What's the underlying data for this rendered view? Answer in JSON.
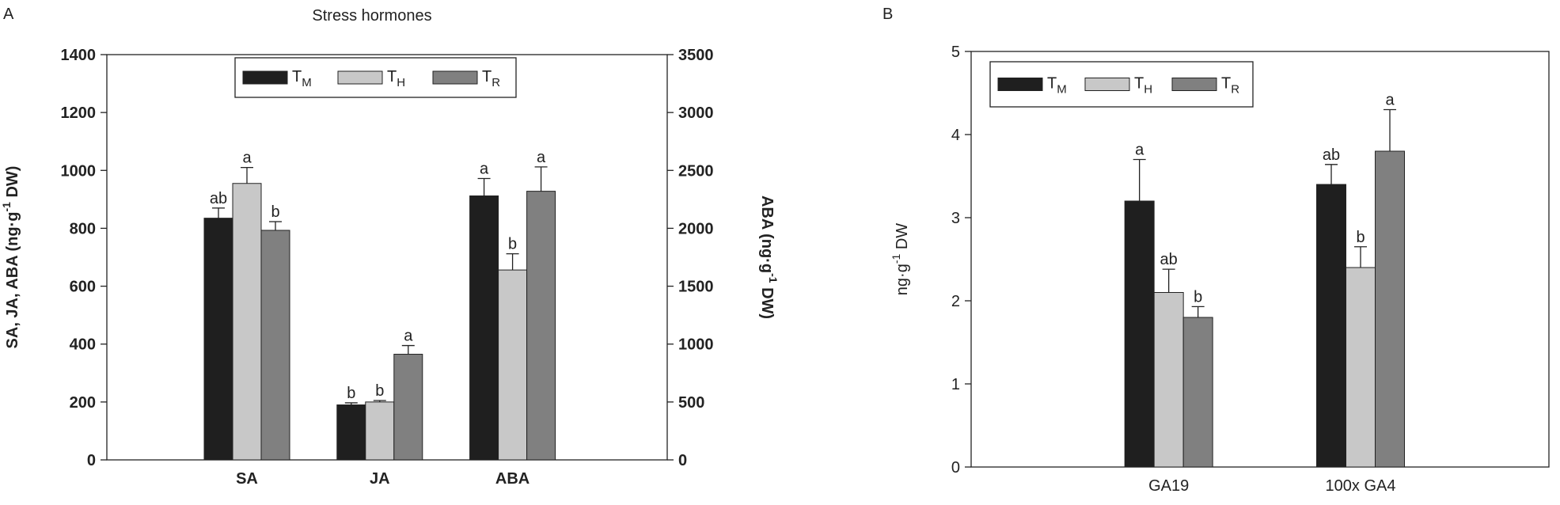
{
  "chart_data": [
    {
      "type": "bar",
      "panel": "A",
      "title": "Stress hormones",
      "categories": [
        "SA",
        "JA",
        "ABA"
      ],
      "category_axes": [
        "y",
        "y",
        "y2"
      ],
      "ylim": [
        0,
        1400
      ],
      "yticks": [
        0,
        200,
        400,
        600,
        800,
        1000,
        1200,
        1400
      ],
      "y2lim": [
        0,
        3500
      ],
      "y2ticks": [
        0,
        500,
        1000,
        1500,
        2000,
        2500,
        3000,
        3500
      ],
      "ylabel": {
        "pre": "SA, JA, ABA (ng·g",
        "sup": "-1",
        "post": " DW)"
      },
      "y2label": {
        "pre": "ABA (ng·g",
        "sup": "-1",
        "post": " DW)"
      },
      "series": [
        {
          "name": "T",
          "name_sub": "M",
          "color": "#1f1f1f",
          "values": [
            835,
            190,
            2280
          ],
          "errors": [
            35,
            7,
            150
          ],
          "labels": [
            "ab",
            "b",
            "a"
          ]
        },
        {
          "name": "T",
          "name_sub": "H",
          "color": "#c8c8c8",
          "values": [
            955,
            200,
            1640
          ],
          "errors": [
            55,
            5,
            140
          ],
          "labels": [
            "a",
            "b",
            "b"
          ]
        },
        {
          "name": "T",
          "name_sub": "R",
          "color": "#808080",
          "values": [
            793,
            365,
            2320
          ],
          "errors": [
            30,
            30,
            210
          ],
          "labels": [
            "b",
            "a",
            "a"
          ]
        }
      ]
    },
    {
      "type": "bar",
      "panel": "B",
      "categories": [
        "GA19",
        "100x GA4"
      ],
      "ylim": [
        0,
        5
      ],
      "yticks": [
        0,
        1,
        2,
        3,
        4,
        5
      ],
      "ylabel": {
        "pre": "ng·g",
        "sup": "-1",
        "post": " DW"
      },
      "series": [
        {
          "name": "T",
          "name_sub": "M",
          "color": "#1f1f1f",
          "values": [
            3.2,
            3.4
          ],
          "errors": [
            0.5,
            0.24
          ],
          "labels": [
            "a",
            "ab"
          ]
        },
        {
          "name": "T",
          "name_sub": "H",
          "color": "#c8c8c8",
          "values": [
            2.1,
            2.4
          ],
          "errors": [
            0.28,
            0.25
          ],
          "labels": [
            "ab",
            "b"
          ]
        },
        {
          "name": "T",
          "name_sub": "R",
          "color": "#808080",
          "values": [
            1.8,
            3.8
          ],
          "errors": [
            0.13,
            0.5
          ],
          "labels": [
            "b",
            "a"
          ]
        }
      ]
    }
  ]
}
